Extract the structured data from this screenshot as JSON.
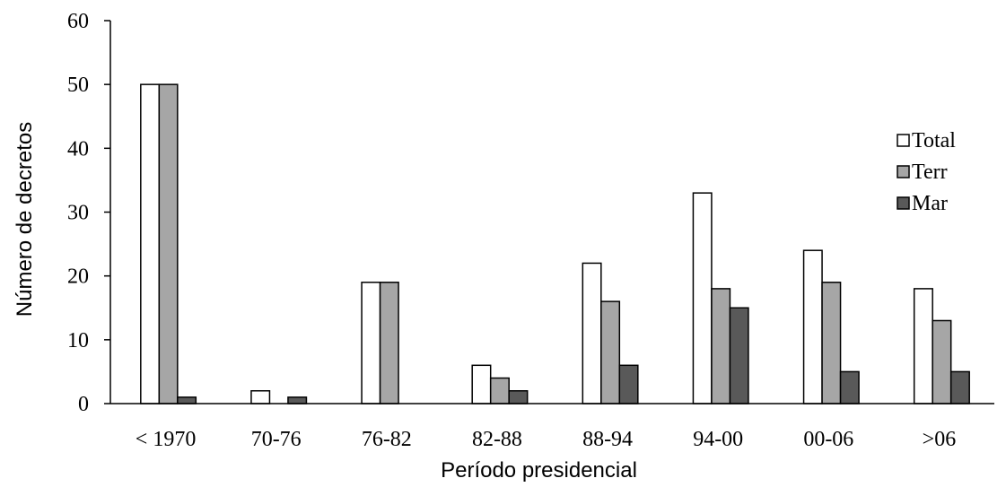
{
  "chart_data": {
    "type": "bar",
    "title": "",
    "xlabel": "Período presidencial",
    "ylabel": "Número de decretos",
    "ylim": [
      0,
      60
    ],
    "yticks": [
      0,
      10,
      20,
      30,
      40,
      50,
      60
    ],
    "categories": [
      "< 1970",
      "70-76",
      "76-82",
      "82-88",
      "88-94",
      "94-00",
      "00-06",
      ">06"
    ],
    "series": [
      {
        "name": "Total",
        "color": "#ffffff",
        "values": [
          50,
          2,
          19,
          6,
          22,
          33,
          24,
          18
        ]
      },
      {
        "name": "Terr",
        "color": "#a6a6a6",
        "values": [
          50,
          0,
          19,
          4,
          16,
          18,
          19,
          13
        ]
      },
      {
        "name": "Mar",
        "color": "#595959",
        "values": [
          1,
          1,
          0,
          2,
          6,
          15,
          5,
          5
        ]
      }
    ],
    "grid": false,
    "legend_position": "right"
  }
}
